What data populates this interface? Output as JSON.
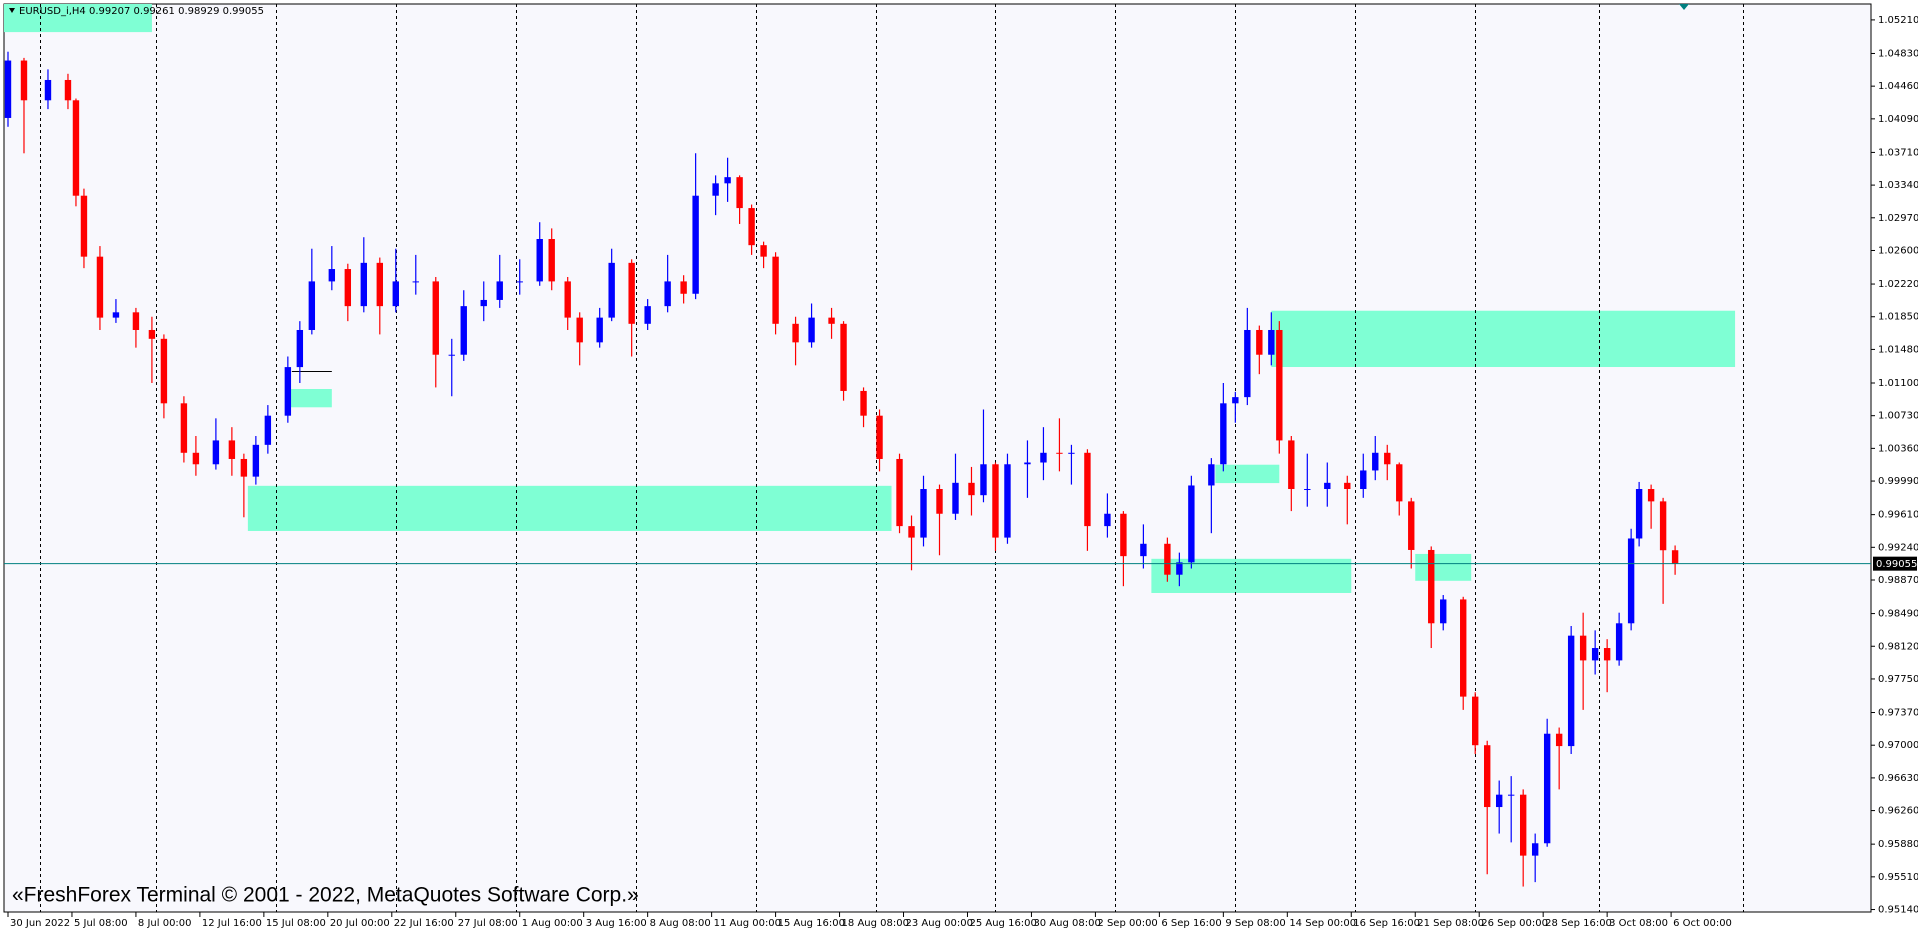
{
  "chart_data": {
    "type": "candlestick",
    "symbol": "EURUSD_i,H4",
    "watermark": "«FreshForex Terminal © 2001 - 2022, MetaQuotes Software Corp.»",
    "up_color": "#0000ff",
    "down_color": "#ff0000",
    "zone_color": "#7fffd4",
    "bid_color": "#008080",
    "xlim": [
      0,
      467
    ],
    "ylim": [
      0.95112,
      1.0539
    ],
    "x": [
      1,
      5,
      11,
      16,
      18,
      20,
      24,
      28,
      33,
      37,
      40,
      45,
      48,
      53,
      57,
      60,
      63,
      66,
      71,
      74,
      77,
      82,
      86,
      90,
      94,
      98,
      103,
      108,
      112,
      115,
      120,
      124,
      129,
      134,
      137,
      141,
      144,
      149,
      152,
      157,
      161,
      166,
      170,
      173,
      178,
      181,
      184,
      187,
      190,
      193,
      198,
      202,
      207,
      210,
      215,
      219,
      224,
      227,
      230,
      234,
      238,
      242,
      245,
      248,
      251,
      256,
      260,
      264,
      267,
      271,
      276,
      280,
      285,
      291,
      294,
      297,
      302,
      305,
      308,
      311,
      314,
      317,
      319,
      322,
      326,
      331,
      336,
      340,
      343,
      346,
      349,
      352,
      357,
      360,
      365,
      368,
      371,
      374,
      377,
      380,
      383,
      386,
      389,
      392,
      395,
      398,
      401,
      404,
      407,
      409,
      412,
      415,
      418
    ],
    "open": [
      1.041,
      1.0475,
      1.043,
      1.0453,
      1.043,
      1.0322,
      1.0253,
      1.0184,
      1.019,
      1.017,
      1.016,
      1.0087,
      1.0031,
      1.0018,
      1.0045,
      1.0024,
      1.0004,
      1.004,
      1.0073,
      1.0128,
      1.017,
      1.0225,
      1.0239,
      1.0197,
      1.0246,
      1.0197,
      1.0225,
      1.0225,
      1.0142,
      1.0142,
      1.0197,
      1.0204,
      1.0225,
      1.0225,
      1.0273,
      1.0225,
      1.0184,
      1.0156,
      1.0184,
      1.0246,
      1.0177,
      1.0197,
      1.0225,
      1.0211,
      1.0322,
      1.0336,
      1.0343,
      1.0308,
      1.0266,
      1.0253,
      1.0177,
      1.0156,
      1.0184,
      1.0177,
      1.0101,
      1.0073,
      1.0024,
      0.9948,
      0.9935,
      0.999,
      0.9962,
      0.9997,
      0.9983,
      1.0018,
      0.9935,
      1.0018,
      1.002,
      1.0031,
      1.003,
      1.0031,
      0.9948,
      0.9962,
      0.9914,
      0.9928,
      0.9893,
      0.9907,
      0.9994,
      1.0018,
      1.0087,
      1.0094,
      1.017,
      1.0142,
      1.017,
      1.0045,
      0.999,
      0.999,
      0.9997,
      0.999,
      1.0011,
      1.0031,
      1.0018,
      0.9976,
      0.9921,
      0.9838,
      0.9865,
      0.9755,
      0.97,
      0.963,
      0.9644,
      0.9644,
      0.9575,
      0.9589,
      0.9713,
      0.9699,
      0.9824,
      0.9796,
      0.981,
      0.9796,
      0.9838,
      0.9934,
      0.999,
      0.9976,
      0.99207
    ],
    "high": [
      1.0485,
      1.0478,
      1.0465,
      1.046,
      1.0432,
      1.033,
      1.0265,
      1.0205,
      1.0195,
      1.0185,
      1.0165,
      1.0095,
      1.005,
      1.007,
      1.006,
      1.003,
      1.005,
      1.0085,
      1.014,
      1.018,
      1.0262,
      1.0265,
      1.0245,
      1.0275,
      1.0252,
      1.0262,
      1.0255,
      1.023,
      1.016,
      1.0215,
      1.0225,
      1.0255,
      1.025,
      1.0292,
      1.0285,
      1.023,
      1.019,
      1.0195,
      1.0262,
      1.025,
      1.0205,
      1.0255,
      1.0232,
      1.037,
      1.0345,
      1.0365,
      1.0345,
      1.0312,
      1.027,
      1.0258,
      1.0185,
      1.02,
      1.0195,
      1.018,
      1.0105,
      1.008,
      1.003,
      0.996,
      1.0005,
      0.9995,
      1.003,
      1.0015,
      1.008,
      1.002,
      1.003,
      1.0045,
      1.006,
      1.007,
      1.004,
      1.0035,
      0.9985,
      0.9965,
      0.995,
      0.9935,
      0.9918,
      1.0005,
      1.0025,
      1.011,
      1.01,
      1.0195,
      1.0175,
      1.019,
      1.018,
      1.005,
      1.003,
      1.002,
      1.0005,
      1.003,
      1.005,
      1.004,
      1.002,
      0.998,
      0.9925,
      0.987,
      0.9868,
      0.976,
      0.9705,
      0.966,
      0.9665,
      0.965,
      0.96,
      0.973,
      0.972,
      0.9835,
      0.985,
      0.983,
      0.982,
      0.985,
      0.9945,
      0.9998,
      0.9995,
      0.998,
      0.99261
    ],
    "low": [
      1.04,
      1.037,
      1.042,
      1.042,
      1.031,
      1.024,
      1.017,
      1.0178,
      1.015,
      1.011,
      1.007,
      1.002,
      1.0005,
      1.0012,
      1.0005,
      0.9958,
      0.9995,
      1.003,
      1.0065,
      1.011,
      1.0165,
      1.0215,
      1.018,
      1.019,
      1.0165,
      1.019,
      1.021,
      1.0105,
      1.0095,
      1.0135,
      1.018,
      1.0195,
      1.021,
      1.022,
      1.0215,
      1.017,
      1.013,
      1.015,
      1.018,
      1.014,
      1.017,
      1.019,
      1.02,
      1.0205,
      1.03,
      1.0315,
      1.029,
      1.0255,
      1.024,
      1.0165,
      1.013,
      1.015,
      1.016,
      1.009,
      1.006,
      1.001,
      0.994,
      0.9898,
      0.9925,
      0.9915,
      0.9955,
      0.996,
      0.9975,
      0.992,
      0.9928,
      0.998,
      1.0,
      1.001,
      0.9995,
      0.992,
      0.9935,
      0.988,
      0.99,
      0.9885,
      0.988,
      0.99,
      0.994,
      1.001,
      1.0065,
      1.0085,
      1.012,
      1.013,
      1.003,
      0.9965,
      0.997,
      0.997,
      0.995,
      0.998,
      1.0,
      1.0,
      0.996,
      0.99,
      0.981,
      0.983,
      0.974,
      0.969,
      0.9554,
      0.96,
      0.959,
      0.954,
      0.9545,
      0.9585,
      0.965,
      0.969,
      0.974,
      0.978,
      0.976,
      0.979,
      0.983,
      0.9925,
      0.9945,
      0.986,
      0.98929
    ],
    "close": [
      1.0475,
      1.043,
      1.0453,
      1.043,
      1.0322,
      1.0253,
      1.0184,
      1.019,
      1.017,
      1.016,
      1.0087,
      1.0031,
      1.0018,
      1.0045,
      1.0024,
      1.0004,
      1.004,
      1.0073,
      1.0128,
      1.017,
      1.0225,
      1.0239,
      1.0197,
      1.0246,
      1.0197,
      1.0225,
      1.0225,
      1.0142,
      1.0142,
      1.0197,
      1.0204,
      1.0225,
      1.0225,
      1.0273,
      1.0225,
      1.0184,
      1.0156,
      1.0184,
      1.0246,
      1.0177,
      1.0197,
      1.0225,
      1.0211,
      1.0322,
      1.0336,
      1.0343,
      1.0308,
      1.0266,
      1.0253,
      1.0177,
      1.0156,
      1.0184,
      1.0177,
      1.0101,
      1.0073,
      1.0024,
      0.9948,
      0.9935,
      0.999,
      0.9962,
      0.9997,
      0.9983,
      1.0018,
      0.9935,
      1.0018,
      1.002,
      1.0031,
      1.003,
      1.0031,
      0.9948,
      0.9962,
      0.9914,
      0.9928,
      0.9893,
      0.9907,
      0.9994,
      1.0018,
      1.0087,
      1.0094,
      1.017,
      1.0142,
      1.017,
      1.0045,
      0.999,
      0.999,
      0.9997,
      0.999,
      1.0011,
      1.0031,
      1.0018,
      0.9976,
      0.9921,
      0.9838,
      0.9865,
      0.9755,
      0.97,
      0.963,
      0.9644,
      0.9644,
      0.9575,
      0.9589,
      0.9713,
      0.9699,
      0.9824,
      0.9796,
      0.981,
      0.9796,
      0.9838,
      0.9934,
      0.999,
      0.9976,
      0.99207,
      0.99055
    ],
    "zones": [
      {
        "x": [
          0,
          37
        ],
        "y": [
          1.05072,
          1.0539
        ]
      },
      {
        "x": [
          71,
          82
        ],
        "y": [
          1.00825,
          1.01032
        ]
      },
      {
        "x": [
          61,
          222
        ],
        "y": [
          0.99425,
          0.99936
        ]
      },
      {
        "x": [
          317,
          433
        ],
        "y": [
          1.01281,
          1.01918
        ]
      },
      {
        "x": [
          303,
          319
        ],
        "y": [
          0.99967,
          1.00175
        ]
      },
      {
        "x": [
          287,
          337
        ],
        "y": [
          0.98723,
          0.9911
        ]
      },
      {
        "x": [
          353,
          367
        ],
        "y": [
          0.98861,
          0.99165
        ]
      }
    ],
    "hlines": [
      {
        "x": [
          72,
          82
        ],
        "y": 1.0123
      }
    ],
    "separators": [
      9,
      38,
      68,
      98,
      128,
      158,
      188,
      218,
      248,
      278,
      308,
      338,
      368,
      399,
      435
    ],
    "yticks": [
      {
        "value": 1.0521,
        "label": "1.05210"
      },
      {
        "value": 1.0483,
        "label": "1.04830"
      },
      {
        "value": 1.0446,
        "label": "1.04460"
      },
      {
        "value": 1.0409,
        "label": "1.04090"
      },
      {
        "value": 1.0371,
        "label": "1.03710"
      },
      {
        "value": 1.0334,
        "label": "1.03340"
      },
      {
        "value": 1.0297,
        "label": "1.02970"
      },
      {
        "value": 1.026,
        "label": "1.02600"
      },
      {
        "value": 1.0222,
        "label": "1.02220"
      },
      {
        "value": 1.0185,
        "label": "1.01850"
      },
      {
        "value": 1.0148,
        "label": "1.01480"
      },
      {
        "value": 1.011,
        "label": "1.01100"
      },
      {
        "value": 1.0073,
        "label": "1.00730"
      },
      {
        "value": 1.0036,
        "label": "1.00360"
      },
      {
        "value": 0.9999,
        "label": "0.99990"
      },
      {
        "value": 0.9961,
        "label": "0.99610"
      },
      {
        "value": 0.9924,
        "label": "0.99240"
      },
      {
        "value": 0.9887,
        "label": "0.98870"
      },
      {
        "value": 0.9849,
        "label": "0.98490"
      },
      {
        "value": 0.9812,
        "label": "0.98120"
      },
      {
        "value": 0.9775,
        "label": "0.97750"
      },
      {
        "value": 0.9737,
        "label": "0.97370"
      },
      {
        "value": 0.97,
        "label": "0.97000"
      },
      {
        "value": 0.9663,
        "label": "0.96630"
      },
      {
        "value": 0.9626,
        "label": "0.96260"
      },
      {
        "value": 0.9588,
        "label": "0.95880"
      },
      {
        "value": 0.9551,
        "label": "0.95510"
      },
      {
        "value": 0.9514,
        "label": "0.95140"
      }
    ],
    "xticks": [
      {
        "value": 1,
        "label": "30 Jun 2022"
      },
      {
        "value": 17,
        "label": "5 Jul 08:00"
      },
      {
        "value": 33,
        "label": "8 Jul 00:00"
      },
      {
        "value": 49,
        "label": "12 Jul 16:00"
      },
      {
        "value": 65,
        "label": "15 Jul 08:00"
      },
      {
        "value": 81,
        "label": "20 Jul 00:00"
      },
      {
        "value": 97,
        "label": "22 Jul 16:00"
      },
      {
        "value": 113,
        "label": "27 Jul 08:00"
      },
      {
        "value": 129,
        "label": "1 Aug 00:00"
      },
      {
        "value": 145,
        "label": "3 Aug 16:00"
      },
      {
        "value": 161,
        "label": "8 Aug 08:00"
      },
      {
        "value": 177,
        "label": "11 Aug 00:00"
      },
      {
        "value": 193,
        "label": "15 Aug 16:00"
      },
      {
        "value": 209,
        "label": "18 Aug 08:00"
      },
      {
        "value": 225,
        "label": "23 Aug 00:00"
      },
      {
        "value": 241,
        "label": "25 Aug 16:00"
      },
      {
        "value": 257,
        "label": "30 Aug 08:00"
      },
      {
        "value": 273,
        "label": "2 Sep 00:00"
      },
      {
        "value": 289,
        "label": "6 Sep 16:00"
      },
      {
        "value": 305,
        "label": "9 Sep 08:00"
      },
      {
        "value": 321,
        "label": "14 Sep 00:00"
      },
      {
        "value": 337,
        "label": "16 Sep 16:00"
      },
      {
        "value": 353,
        "label": "21 Sep 08:00"
      },
      {
        "value": 369,
        "label": "26 Sep 00:00"
      },
      {
        "value": 385,
        "label": "28 Sep 16:00"
      },
      {
        "value": 401,
        "label": "3 Oct 08:00"
      },
      {
        "value": 417,
        "label": "6 Oct 00:00"
      }
    ]
  }
}
